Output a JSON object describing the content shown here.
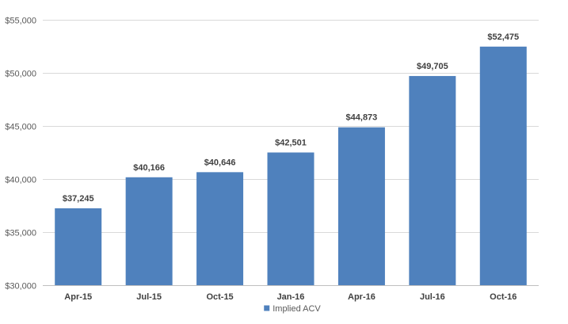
{
  "chart_data": {
    "type": "bar",
    "categories": [
      "Apr-15",
      "Jul-15",
      "Oct-15",
      "Jan-16",
      "Apr-16",
      "Jul-16",
      "Oct-16"
    ],
    "series": [
      {
        "name": "Implied ACV",
        "values": [
          37245,
          40166,
          40646,
          42501,
          44873,
          49705,
          52475
        ],
        "labels": [
          "$37,245",
          "$40,166",
          "$40,646",
          "$42,501",
          "$44,873",
          "$49,705",
          "$52,475"
        ],
        "color": "#4f81bd"
      }
    ],
    "ylim": [
      30000,
      55000
    ],
    "yticks": [
      30000,
      35000,
      40000,
      45000,
      50000,
      55000
    ],
    "ytick_labels": [
      "$30,000",
      "$35,000",
      "$40,000",
      "$45,000",
      "$50,000",
      "$55,000"
    ],
    "grid": true,
    "legend": "bottom-center",
    "gridline_color": "#d9d9d9",
    "axis_color": "#bfbfbf"
  }
}
